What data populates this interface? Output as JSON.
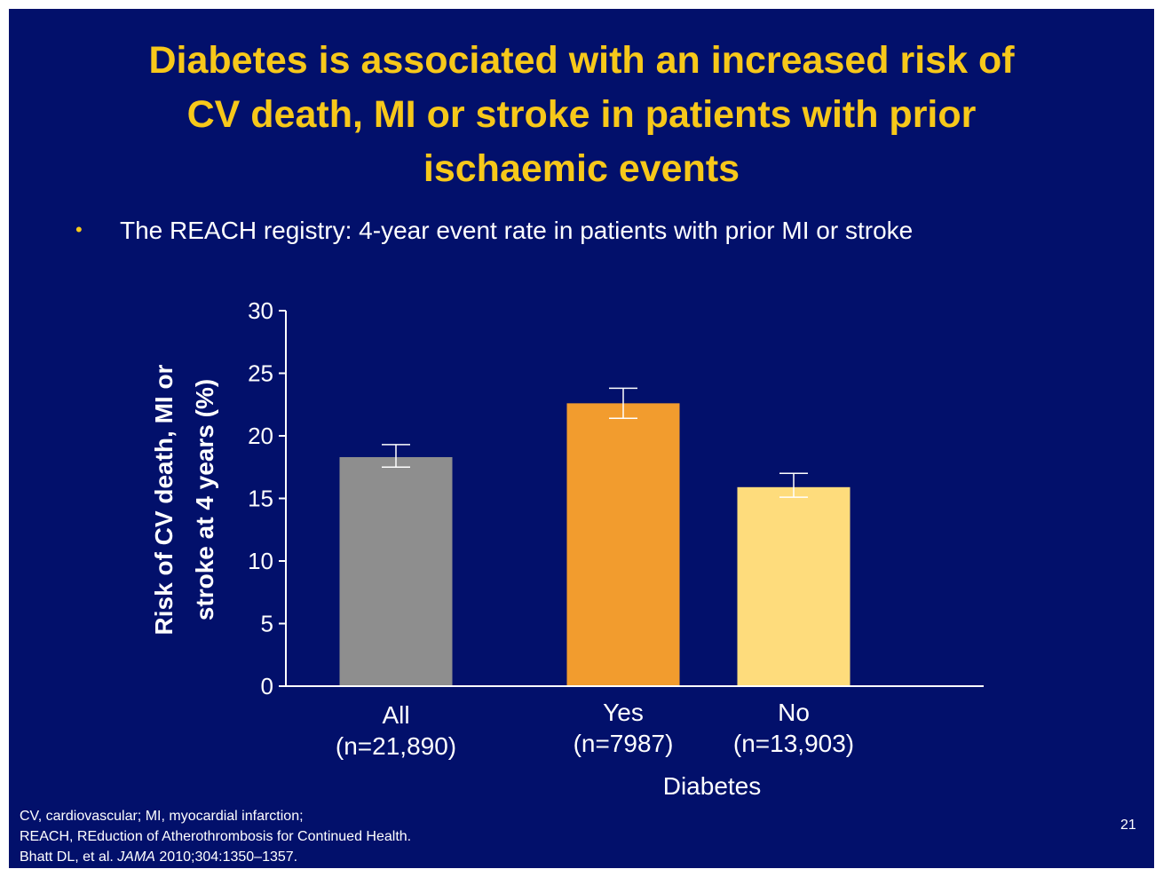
{
  "title_lines": [
    "Diabetes is associated with an increased risk of",
    "CV death, MI or stroke in patients with prior",
    "ischaemic events"
  ],
  "bullet": {
    "marker": "•",
    "text": "The REACH registry: 4-year event rate in patients with prior MI or stroke"
  },
  "colors": {
    "background": "#02106b",
    "title": "#f7c81a",
    "text": "#ffffff"
  },
  "chart_data": {
    "type": "bar",
    "ylabel_lines": [
      "Risk of CV death, MI or",
      "stroke at 4 years (%)"
    ],
    "xlabel": "Diabetes",
    "ylim": [
      0,
      30
    ],
    "yticks": [
      "0",
      "5",
      "10",
      "15",
      "20",
      "25",
      "30"
    ],
    "grid": false,
    "categories": [
      {
        "label": "All",
        "n": "(n=21,890)",
        "value": 18.3,
        "err_low": 17.5,
        "err_high": 19.3,
        "color": "#8e8e8e"
      },
      {
        "label": "Yes",
        "n": "(n=7987)",
        "value": 22.6,
        "err_low": 21.4,
        "err_high": 23.8,
        "color": "#f29c2e"
      },
      {
        "label": "No",
        "n": "(n=13,903)",
        "value": 15.9,
        "err_low": 15.1,
        "err_high": 17.0,
        "color": "#fedc7c"
      }
    ]
  },
  "footnote_lines": [
    "CV, cardiovascular; MI, myocardial infarction;",
    "REACH, REduction of Atherothrombosis for Continued Health."
  ],
  "citation": {
    "prefix": "Bhatt DL, et al. ",
    "journal": "JAMA",
    "suffix": " 2010;304:1350–1357."
  },
  "page_number": "21"
}
